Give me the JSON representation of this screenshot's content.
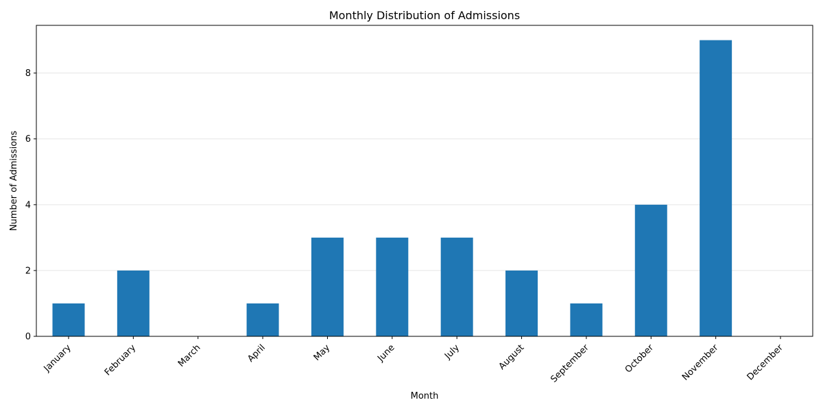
{
  "chart_data": {
    "type": "bar",
    "title": "Monthly Distribution of Admissions",
    "xlabel": "Month",
    "ylabel": "Number of Admissions",
    "categories": [
      "January",
      "February",
      "March",
      "April",
      "May",
      "June",
      "July",
      "August",
      "September",
      "October",
      "November",
      "December"
    ],
    "values": [
      1,
      2,
      0,
      1,
      3,
      3,
      3,
      2,
      1,
      4,
      9,
      0
    ],
    "ylim": [
      0,
      9.45
    ],
    "yticks": [
      0,
      2,
      4,
      6,
      8
    ],
    "grid": "y",
    "color": "#1f77b4",
    "xtick_rotation": 45
  }
}
